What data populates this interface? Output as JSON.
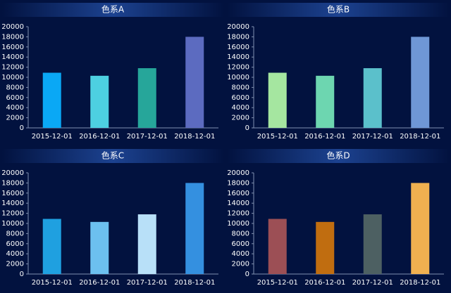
{
  "chart_data": [
    {
      "type": "bar",
      "title": "色系A",
      "categories": [
        "2015-12-01",
        "2016-12-01",
        "2017-12-01",
        "2018-12-01"
      ],
      "values": [
        10900,
        10300,
        11800,
        18000
      ],
      "colors": [
        "#0aa8f5",
        "#4dd0e1",
        "#26a69a",
        "#5c6bc0"
      ],
      "ylim": [
        0,
        20000
      ],
      "yticks": [
        0,
        2000,
        4000,
        6000,
        8000,
        10000,
        12000,
        14000,
        16000,
        18000,
        20000
      ]
    },
    {
      "type": "bar",
      "title": "色系B",
      "categories": [
        "2015-12-01",
        "2016-12-01",
        "2017-12-01",
        "2018-12-01"
      ],
      "values": [
        10900,
        10300,
        11800,
        18000
      ],
      "colors": [
        "#a5e6a0",
        "#6dd6b0",
        "#5bc0cb",
        "#6f97d6"
      ],
      "ylim": [
        0,
        20000
      ],
      "yticks": [
        0,
        2000,
        4000,
        6000,
        8000,
        10000,
        12000,
        14000,
        16000,
        18000,
        20000
      ]
    },
    {
      "type": "bar",
      "title": "色系C",
      "categories": [
        "2015-12-01",
        "2016-12-01",
        "2017-12-01",
        "2018-12-01"
      ],
      "values": [
        10900,
        10300,
        11800,
        18000
      ],
      "colors": [
        "#1fa0e0",
        "#6cc0ef",
        "#b8e0f8",
        "#3490e0"
      ],
      "ylim": [
        0,
        20000
      ],
      "yticks": [
        0,
        2000,
        4000,
        6000,
        8000,
        10000,
        12000,
        14000,
        16000,
        18000,
        20000
      ]
    },
    {
      "type": "bar",
      "title": "色系D",
      "categories": [
        "2015-12-01",
        "2016-12-01",
        "2017-12-01",
        "2018-12-01"
      ],
      "values": [
        10900,
        10300,
        11800,
        18000
      ],
      "colors": [
        "#9c4f55",
        "#c06d10",
        "#4d6062",
        "#f0b050"
      ],
      "ylim": [
        0,
        20000
      ],
      "yticks": [
        0,
        2000,
        4000,
        6000,
        8000,
        10000,
        12000,
        14000,
        16000,
        18000,
        20000
      ]
    }
  ]
}
